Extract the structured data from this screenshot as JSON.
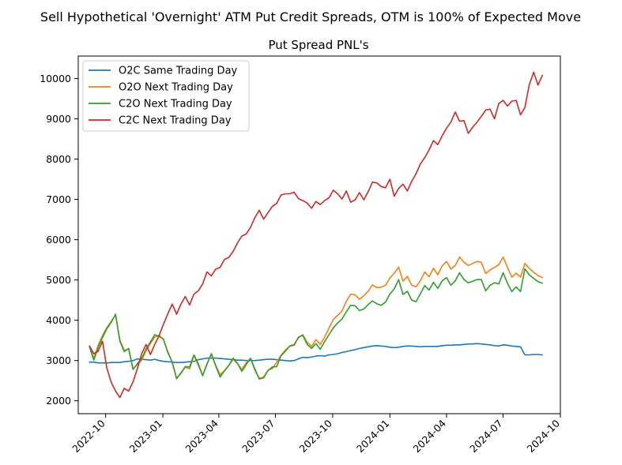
{
  "chart_data": {
    "type": "line",
    "suptitle": "Sell Hypothetical 'Overnight' ATM Put Credit Spreads, OTM is 100% of Expected Move",
    "title": "Put Spread PNL's",
    "xlabel": "",
    "ylabel": "",
    "grid": false,
    "legend_position": "top-left",
    "x_ticks": [
      "2022-10",
      "2023-01",
      "2023-04",
      "2023-07",
      "2023-10",
      "2024-01",
      "2024-04",
      "2024-07",
      "2024-10"
    ],
    "y_ticks": [
      2000,
      3000,
      4000,
      5000,
      6000,
      7000,
      8000,
      9000,
      10000
    ],
    "xlim": [
      "2022-08-18",
      "2024-10-01"
    ],
    "ylim": [
      1680,
      10560
    ],
    "x": [
      "2022-09-05",
      "2022-09-12",
      "2022-09-19",
      "2022-09-26",
      "2022-10-03",
      "2022-10-10",
      "2022-10-17",
      "2022-10-24",
      "2022-10-31",
      "2022-11-07",
      "2022-11-14",
      "2022-11-21",
      "2022-11-28",
      "2022-12-05",
      "2022-12-12",
      "2022-12-19",
      "2022-12-26",
      "2023-01-02",
      "2023-01-09",
      "2023-01-16",
      "2023-01-23",
      "2023-01-30",
      "2023-02-06",
      "2023-02-13",
      "2023-02-20",
      "2023-02-27",
      "2023-03-06",
      "2023-03-13",
      "2023-03-20",
      "2023-03-27",
      "2023-04-03",
      "2023-04-10",
      "2023-04-17",
      "2023-04-24",
      "2023-05-01",
      "2023-05-08",
      "2023-05-15",
      "2023-05-22",
      "2023-05-29",
      "2023-06-05",
      "2023-06-12",
      "2023-06-19",
      "2023-06-26",
      "2023-07-03",
      "2023-07-10",
      "2023-07-17",
      "2023-07-24",
      "2023-07-31",
      "2023-08-07",
      "2023-08-14",
      "2023-08-21",
      "2023-08-28",
      "2023-09-04",
      "2023-09-11",
      "2023-09-18",
      "2023-09-25",
      "2023-10-02",
      "2023-10-09",
      "2023-10-16",
      "2023-10-23",
      "2023-10-30",
      "2023-11-06",
      "2023-11-13",
      "2023-11-20",
      "2023-11-27",
      "2023-12-04",
      "2023-12-11",
      "2023-12-18",
      "2023-12-25",
      "2024-01-01",
      "2024-01-08",
      "2024-01-15",
      "2024-01-22",
      "2024-01-29",
      "2024-02-05",
      "2024-02-12",
      "2024-02-19",
      "2024-02-26",
      "2024-03-04",
      "2024-03-11",
      "2024-03-18",
      "2024-03-25",
      "2024-04-01",
      "2024-04-08",
      "2024-04-15",
      "2024-04-22",
      "2024-04-29",
      "2024-05-06",
      "2024-05-13",
      "2024-05-20",
      "2024-05-27",
      "2024-06-03",
      "2024-06-10",
      "2024-06-17",
      "2024-06-24",
      "2024-07-01",
      "2024-07-08",
      "2024-07-15",
      "2024-07-22",
      "2024-07-29",
      "2024-08-05",
      "2024-08-12",
      "2024-08-19",
      "2024-08-26",
      "2024-09-02"
    ],
    "series": [
      {
        "name": "O2C Same Trading Day",
        "color": "#1f77b4",
        "values": [
          2960,
          2960,
          2940,
          2940,
          2940,
          2950,
          2950,
          2950,
          2970,
          2980,
          3000,
          3040,
          3030,
          3020,
          3010,
          3030,
          3000,
          2980,
          2970,
          2960,
          2950,
          2950,
          2960,
          2970,
          2980,
          3020,
          3040,
          3060,
          3060,
          3060,
          3050,
          3040,
          3030,
          3020,
          3010,
          3010,
          3000,
          3000,
          3000,
          3010,
          3020,
          3030,
          3030,
          3020,
          3010,
          3000,
          2990,
          3000,
          3040,
          3080,
          3070,
          3090,
          3110,
          3120,
          3110,
          3140,
          3150,
          3170,
          3200,
          3220,
          3250,
          3270,
          3300,
          3320,
          3340,
          3360,
          3370,
          3360,
          3350,
          3330,
          3320,
          3330,
          3350,
          3360,
          3360,
          3350,
          3340,
          3350,
          3350,
          3350,
          3350,
          3370,
          3380,
          3380,
          3390,
          3390,
          3400,
          3410,
          3410,
          3420,
          3410,
          3400,
          3390,
          3370,
          3360,
          3390,
          3380,
          3360,
          3350,
          3340,
          3140,
          3140,
          3150,
          3150,
          3140
        ]
      },
      {
        "name": "O2O Next Trading Day",
        "color": "#ff7f0e",
        "values": [
          3360,
          3050,
          3380,
          3620,
          3820,
          3970,
          4130,
          3510,
          3250,
          3290,
          2790,
          2900,
          3010,
          3240,
          3420,
          3580,
          3630,
          3520,
          3220,
          2960,
          2540,
          2700,
          2830,
          2790,
          3130,
          2880,
          2630,
          2920,
          3160,
          2880,
          2650,
          2750,
          2880,
          3030,
          2920,
          2780,
          2940,
          3060,
          2750,
          2560,
          2590,
          2760,
          2800,
          2960,
          3130,
          3260,
          3360,
          3400,
          3560,
          3640,
          3450,
          3350,
          3520,
          3400,
          3580,
          3800,
          4020,
          4120,
          4230,
          4470,
          4650,
          4630,
          4520,
          4610,
          4720,
          4880,
          4810,
          4820,
          4870,
          5050,
          5170,
          5320,
          4970,
          5090,
          4870,
          4830,
          4980,
          5200,
          5080,
          5290,
          5130,
          5350,
          5460,
          5270,
          5360,
          5570,
          5440,
          5360,
          5410,
          5460,
          5440,
          5160,
          5250,
          5310,
          5380,
          5570,
          5310,
          5070,
          5170,
          5070,
          5410,
          5290,
          5190,
          5110,
          5060
        ]
      },
      {
        "name": "C2O Next Trading Day",
        "color": "#2ca02c",
        "values": [
          3340,
          3010,
          3330,
          3570,
          3790,
          3950,
          4150,
          3480,
          3220,
          3300,
          2780,
          2920,
          3050,
          3290,
          3460,
          3640,
          3600,
          3530,
          3200,
          2960,
          2560,
          2680,
          2850,
          2840,
          3140,
          2920,
          2620,
          2910,
          3170,
          2870,
          2590,
          2740,
          2880,
          3060,
          2930,
          2730,
          2900,
          3050,
          2790,
          2540,
          2570,
          2750,
          2840,
          2850,
          3120,
          3230,
          3360,
          3380,
          3580,
          3630,
          3400,
          3300,
          3420,
          3280,
          3470,
          3640,
          3810,
          3930,
          4030,
          4210,
          4370,
          4360,
          4240,
          4280,
          4390,
          4480,
          4410,
          4370,
          4450,
          4650,
          4780,
          5010,
          4640,
          4720,
          4500,
          4460,
          4660,
          4860,
          4750,
          4940,
          4790,
          4980,
          5060,
          4870,
          4980,
          5180,
          5010,
          4930,
          4970,
          5010,
          5010,
          4730,
          4870,
          4930,
          4900,
          5180,
          4920,
          4710,
          4830,
          4710,
          5280,
          5130,
          5040,
          4960,
          4920
        ]
      },
      {
        "name": "C2C Next Trading Day",
        "color": "#d62728",
        "values": [
          3360,
          3170,
          3230,
          3480,
          2810,
          2460,
          2240,
          2080,
          2310,
          2240,
          2470,
          2800,
          3170,
          3400,
          3150,
          3400,
          3620,
          3900,
          4160,
          4400,
          4150,
          4400,
          4590,
          4380,
          4650,
          4730,
          4900,
          5200,
          5100,
          5270,
          5310,
          5510,
          5560,
          5710,
          5920,
          6090,
          6140,
          6310,
          6550,
          6730,
          6510,
          6670,
          6830,
          6900,
          7110,
          7140,
          7140,
          7180,
          7020,
          6970,
          6910,
          6780,
          6950,
          6870,
          6970,
          7040,
          7230,
          7140,
          7010,
          7210,
          6930,
          6990,
          7170,
          6990,
          7190,
          7430,
          7410,
          7320,
          7290,
          7500,
          7080,
          7270,
          7380,
          7210,
          7450,
          7640,
          7880,
          8040,
          8230,
          8460,
          8360,
          8580,
          8770,
          8920,
          9170,
          8940,
          8960,
          8640,
          8790,
          8920,
          9060,
          9220,
          9240,
          9000,
          9380,
          9460,
          9320,
          9440,
          9460,
          9100,
          9280,
          9840,
          10160,
          9840,
          10080
        ]
      }
    ]
  }
}
